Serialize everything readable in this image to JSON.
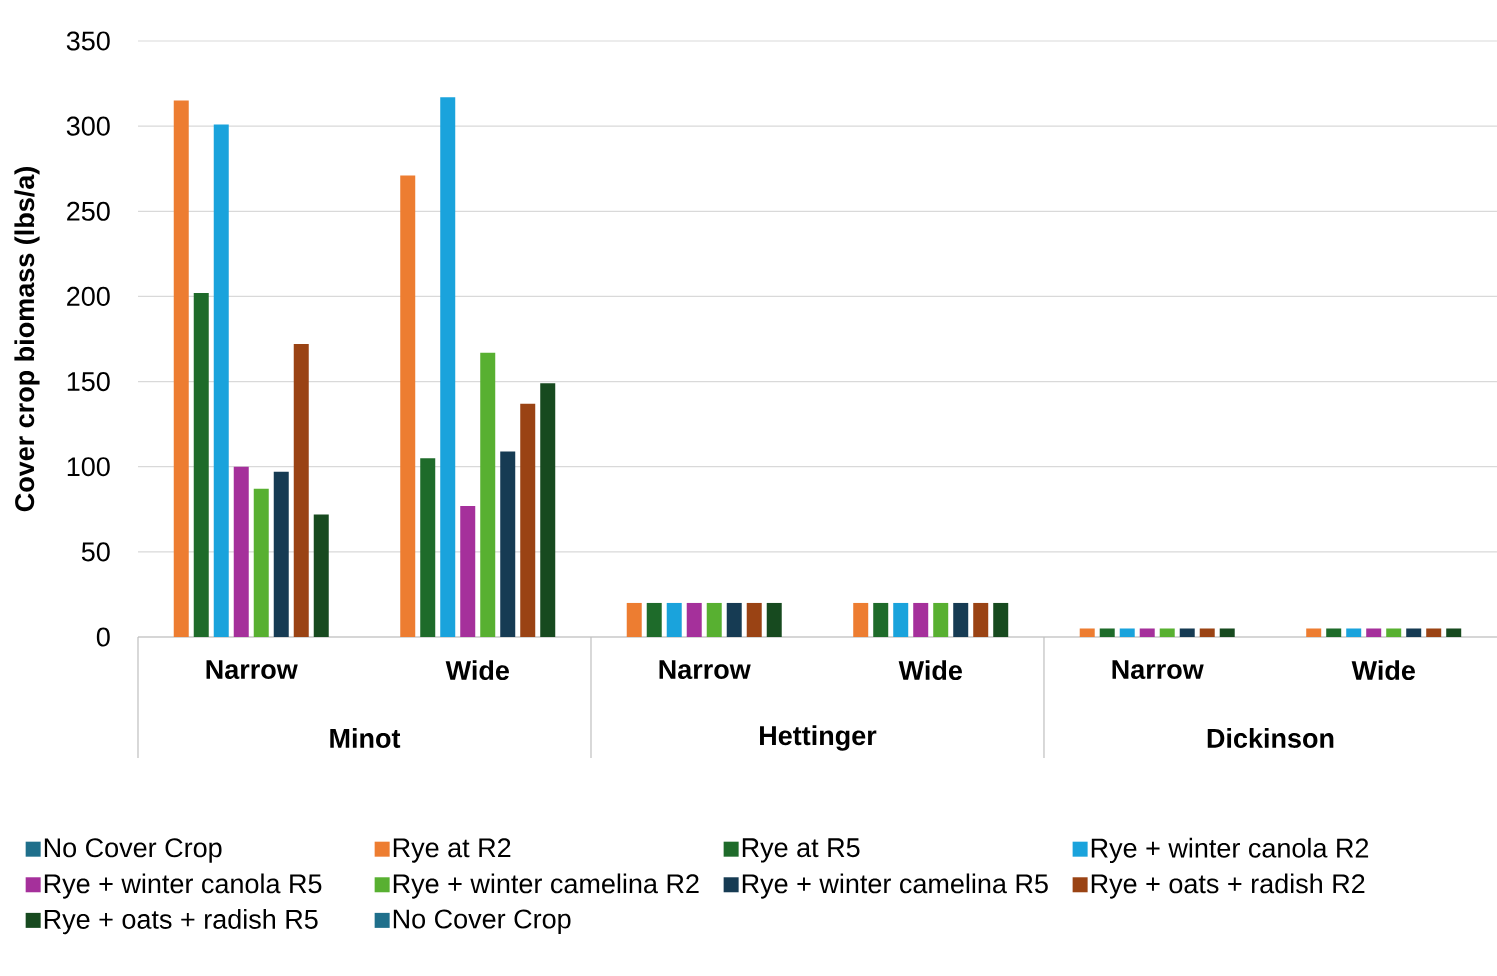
{
  "chart_data": {
    "type": "bar",
    "ylabel": "Cover crop biomass (lbs/a)",
    "categories": [
      "Narrow",
      "Wide",
      "Narrow",
      "Wide",
      "Narrow",
      "Wide"
    ],
    "annotations": [
      "Minot",
      "Hettinger",
      "Dickinson"
    ],
    "series": [
      {
        "name": "No Cover Crop",
        "color": "#1f6f8b",
        "values": [
          0,
          0,
          0,
          0,
          0,
          0
        ]
      },
      {
        "name": "Rye at R2",
        "color": "#ed7d31",
        "values": [
          315,
          271,
          20,
          20,
          5,
          5
        ]
      },
      {
        "name": "Rye at R5",
        "color": "#1e6b2a",
        "values": [
          202,
          105,
          20,
          20,
          5,
          5
        ]
      },
      {
        "name": "Rye + winter canola R2",
        "color": "#1aa3dc",
        "values": [
          301,
          317,
          20,
          20,
          5,
          5
        ]
      },
      {
        "name": "Rye + winter canola R5",
        "color": "#a5309b",
        "values": [
          100,
          77,
          20,
          20,
          5,
          5
        ]
      },
      {
        "name": "Rye + winter camelina R2",
        "color": "#58b031",
        "values": [
          87,
          167,
          20,
          20,
          5,
          5
        ]
      },
      {
        "name": "Rye + winter camelina R5",
        "color": "#163b53",
        "values": [
          97,
          109,
          20,
          20,
          5,
          5
        ]
      },
      {
        "name": "Rye + oats + radish R2",
        "color": "#9a4314",
        "values": [
          172,
          137,
          20,
          20,
          5,
          5
        ]
      },
      {
        "name": "Rye + oats + radish R5",
        "color": "#174a1f",
        "values": [
          72,
          149,
          20,
          20,
          5,
          5
        ]
      },
      {
        "name": "No Cover Crop",
        "color": "#1f6f8b",
        "values": [
          0,
          0,
          0,
          0,
          0,
          0
        ]
      }
    ],
    "ylim": [
      0,
      350
    ],
    "yticks": [
      0,
      50,
      100,
      150,
      200,
      250,
      300,
      350
    ],
    "grid": "y",
    "legend": "bottom"
  }
}
